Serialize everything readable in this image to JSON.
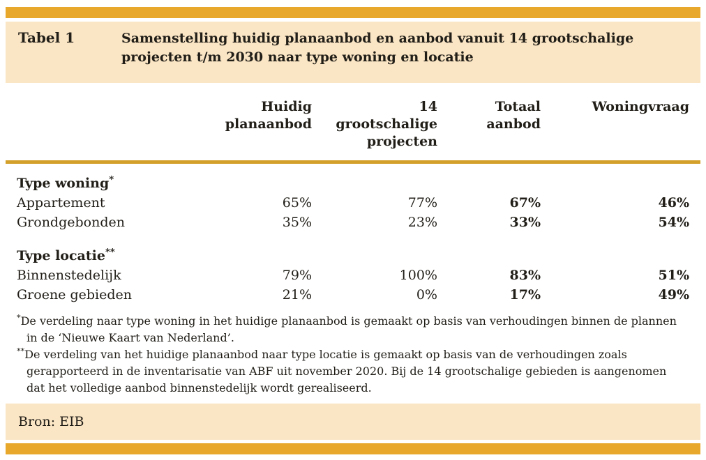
{
  "colors": {
    "accent_bar": "#e7a82c",
    "band_beige": "#fae5c4",
    "rule_gold": "#d3a02a",
    "text": "#211e18"
  },
  "header": {
    "label": "Tabel 1",
    "title": "Samenstelling huidig planaanbod en aanbod vanuit 14 grootschalige projecten t/m 2030 naar type woning en locatie"
  },
  "table": {
    "columns": [
      "Huidig planaanbod",
      "14 grootschalige projecten",
      "Totaal aanbod",
      "Woningvraag"
    ],
    "sections": [
      {
        "heading": "Type woning",
        "heading_note": "*",
        "rows": [
          {
            "label": "Appartement",
            "values": [
              "65%",
              "77%",
              "67%",
              "46%"
            ]
          },
          {
            "label": "Grondgebonden",
            "values": [
              "35%",
              "23%",
              "33%",
              "54%"
            ]
          }
        ]
      },
      {
        "heading": "Type locatie",
        "heading_note": "**",
        "rows": [
          {
            "label": "Binnenstedelijk",
            "values": [
              "79%",
              "100%",
              "83%",
              "51%"
            ]
          },
          {
            "label": "Groene gebieden",
            "values": [
              "21%",
              "0%",
              "17%",
              "49%"
            ]
          }
        ]
      }
    ]
  },
  "footnotes": [
    {
      "marker": "*",
      "text": "De verdeling naar type woning in het huidige planaanbod is gemaakt op basis van verhoudingen binnen de plannen in de ‘Nieuwe Kaart van Nederland’."
    },
    {
      "marker": "**",
      "text": "De verdeling van het huidige planaanbod naar type locatie is gemaakt op basis van de verhoudingen zoals gerapporteerd in de inventarisatie van ABF uit november 2020. Bij de 14 grootschalige gebieden is aangenomen dat het volledige aanbod binnenstedelijk wordt gerealiseerd."
    }
  ],
  "source": "Bron: EIB"
}
